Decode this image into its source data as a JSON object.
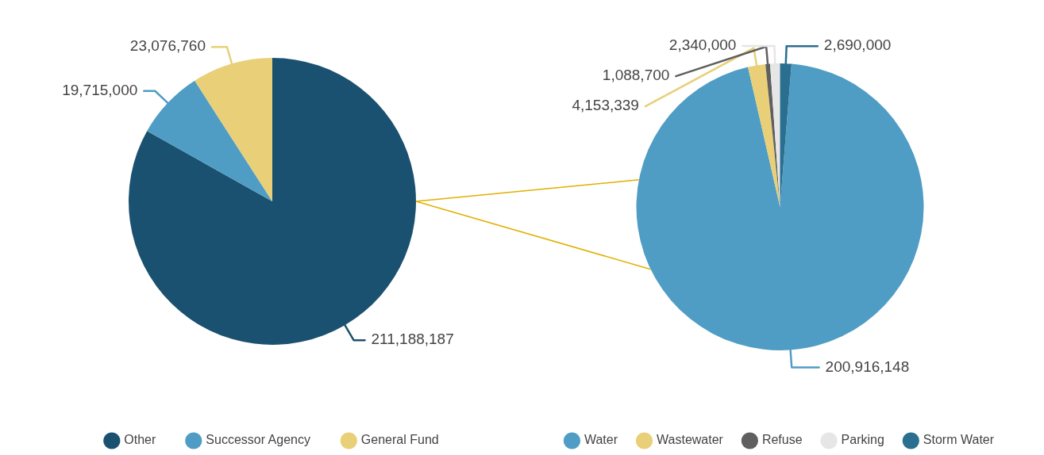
{
  "chart_data": [
    {
      "type": "pie",
      "categories": [
        "Other",
        "Successor Agency",
        "General Fund"
      ],
      "values": [
        211188187,
        19715000,
        23076760
      ],
      "colors": [
        "#1b5170",
        "#4f9dc4",
        "#e8cf78"
      ],
      "value_labels": [
        "211,188,187",
        "19,715,000",
        "23,076,760"
      ],
      "legend": "bottom"
    },
    {
      "type": "pie",
      "categories": [
        "Water",
        "Wastewater",
        "Refuse",
        "Parking",
        "Storm Water"
      ],
      "values": [
        200916148,
        4153339,
        1088700,
        2340000,
        2690000
      ],
      "colors": [
        "#4f9dc4",
        "#e8cf78",
        "#5f5f5f",
        "#e6e6e6",
        "#2a6f8f"
      ],
      "value_labels": [
        "200,916,148",
        "4,153,339",
        "1,088,700",
        "2,340,000",
        "2,690,000"
      ],
      "legend": "bottom"
    }
  ]
}
